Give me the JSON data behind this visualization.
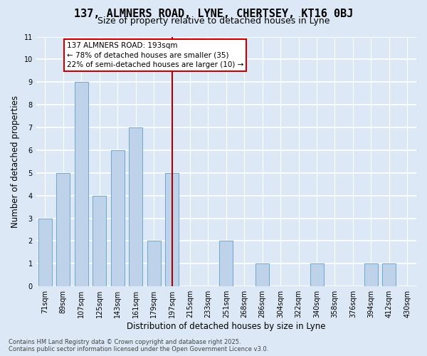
{
  "title1": "137, ALMNERS ROAD, LYNE, CHERTSEY, KT16 0BJ",
  "title2": "Size of property relative to detached houses in Lyne",
  "xlabel": "Distribution of detached houses by size in Lyne",
  "ylabel": "Number of detached properties",
  "bins": [
    "71sqm",
    "89sqm",
    "107sqm",
    "125sqm",
    "143sqm",
    "161sqm",
    "179sqm",
    "197sqm",
    "215sqm",
    "233sqm",
    "251sqm",
    "268sqm",
    "286sqm",
    "304sqm",
    "322sqm",
    "340sqm",
    "358sqm",
    "376sqm",
    "394sqm",
    "412sqm",
    "430sqm"
  ],
  "bar_heights": [
    3,
    5,
    9,
    4,
    6,
    7,
    2,
    5,
    0,
    0,
    2,
    0,
    1,
    0,
    0,
    1,
    0,
    0,
    1,
    1,
    0
  ],
  "bar_color": "#bed3ea",
  "bar_edge_color": "#6fa8cc",
  "bar_width": 0.75,
  "vline_x": 7,
  "vline_color": "#aa0000",
  "ylim": [
    0,
    11
  ],
  "yticks": [
    0,
    1,
    2,
    3,
    4,
    5,
    6,
    7,
    8,
    9,
    10,
    11
  ],
  "annotation_title": "137 ALMNERS ROAD: 193sqm",
  "annotation_line1": "← 78% of detached houses are smaller (35)",
  "annotation_line2": "22% of semi-detached houses are larger (10) →",
  "annotation_box_color": "#ffffff",
  "annotation_box_edge": "#cc0000",
  "footer1": "Contains HM Land Registry data © Crown copyright and database right 2025.",
  "footer2": "Contains public sector information licensed under the Open Government Licence v3.0.",
  "bg_color": "#dce8f5",
  "grid_color": "#ffffff",
  "title1_fontsize": 11,
  "title2_fontsize": 9,
  "axis_label_fontsize": 8.5,
  "tick_fontsize": 7,
  "footer_fontsize": 6,
  "ann_fontsize": 7.5
}
